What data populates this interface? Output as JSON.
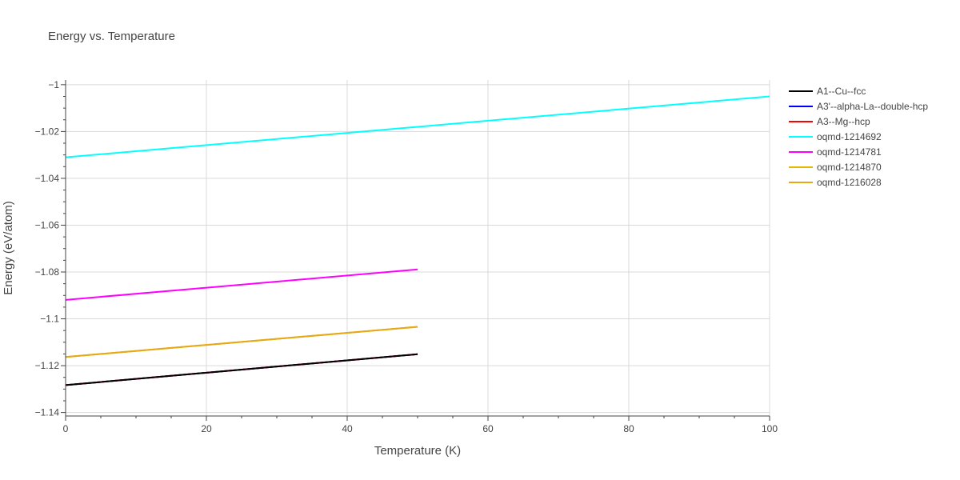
{
  "chart_data": {
    "type": "line",
    "title": "Energy vs. Temperature",
    "xlabel": "Temperature (K)",
    "ylabel": "Energy (eV/atom)",
    "xlim": [
      0,
      100
    ],
    "ylim": [
      -1.1415,
      -0.998
    ],
    "xticks": [
      0,
      20,
      40,
      60,
      80,
      100
    ],
    "xtick_labels": [
      "0",
      "20",
      "40",
      "60",
      "80",
      "100"
    ],
    "yticks": [
      -1.14,
      -1.12,
      -1.1,
      -1.08,
      -1.06,
      -1.04,
      -1.02,
      -1.0
    ],
    "ytick_labels": [
      "−1.14",
      "−1.12",
      "−1.1",
      "−1.08",
      "−1.06",
      "−1.04",
      "−1.02",
      "−1"
    ],
    "grid": true,
    "legend_position": "right",
    "series": [
      {
        "name": "A1--Cu--fcc",
        "color": "#000000",
        "x": [
          0,
          50
        ],
        "y": [
          -1.1283,
          -1.1151
        ]
      },
      {
        "name": "A3'--alpha-La--double-hcp",
        "color": "#0000ff",
        "x": [
          0,
          50
        ],
        "y": [
          -1.1283,
          -1.1151
        ]
      },
      {
        "name": "A3--Mg--hcp",
        "color": "#ff0000",
        "x": [
          0,
          50
        ],
        "y": [
          -1.1283,
          -1.1151
        ]
      },
      {
        "name": "oqmd-1214692",
        "color": "#00ffff",
        "x": [
          0,
          100
        ],
        "y": [
          -1.031,
          -1.005
        ]
      },
      {
        "name": "oqmd-1214781",
        "color": "#ff00ff",
        "x": [
          0,
          50
        ],
        "y": [
          -1.0919,
          -1.0789
        ]
      },
      {
        "name": "oqmd-1214870",
        "color": "#e6b800",
        "x": [
          0,
          50
        ],
        "y": [
          -1.1163,
          -1.1034
        ]
      },
      {
        "name": "oqmd-1216028",
        "color": "#e6a817",
        "x": [
          0,
          50
        ],
        "y": [
          -1.1163,
          -1.1034
        ]
      }
    ],
    "draw_order": [
      1,
      2,
      3,
      4,
      5,
      6,
      0
    ]
  }
}
